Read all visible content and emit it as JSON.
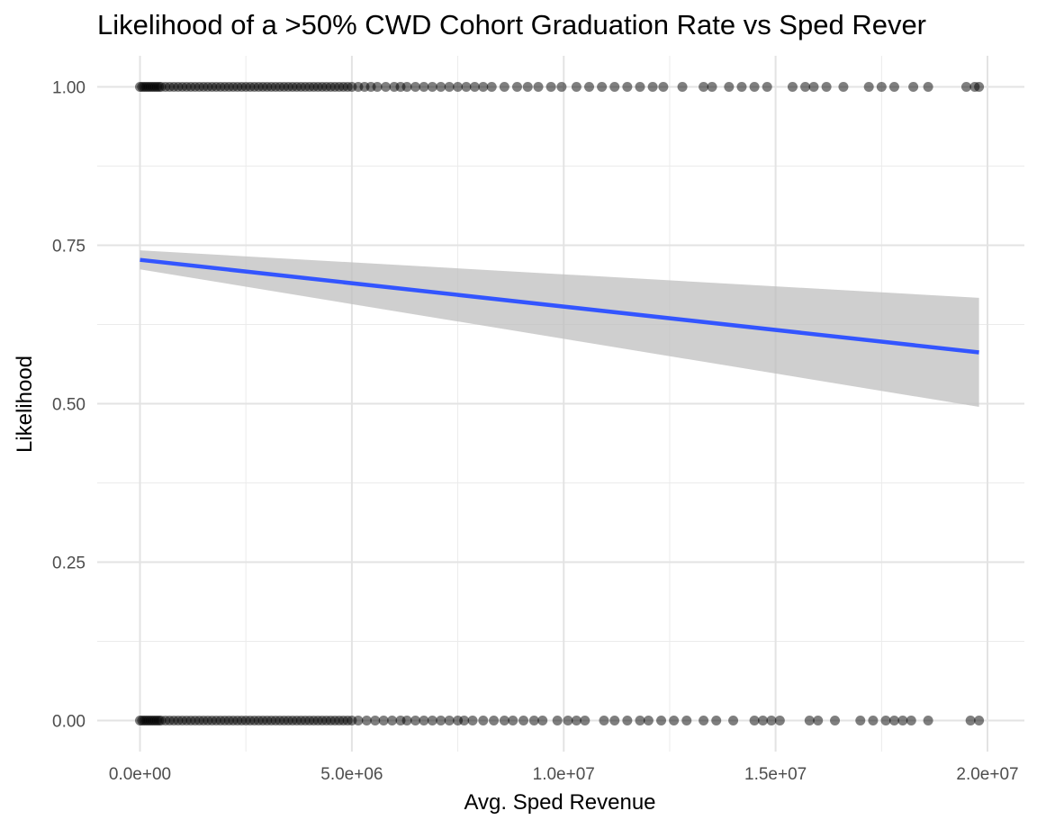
{
  "chart_data": {
    "type": "scatter",
    "title": "Likelihood of a >50% CWD Cohort Graduation Rate vs Sped Rever",
    "xlabel": "Avg. Sped Revenue",
    "ylabel": "Likelihood",
    "xlim": [
      0,
      20000000
    ],
    "ylim": [
      0,
      1
    ],
    "x_ticks": [
      0,
      5000000,
      10000000,
      15000000,
      20000000
    ],
    "x_tick_labels": [
      "0.0e+00",
      "5.0e+06",
      "1.0e+07",
      "1.5e+07",
      "2.0e+07"
    ],
    "y_ticks": [
      0,
      0.25,
      0.5,
      0.75,
      1
    ],
    "y_tick_labels": [
      "0.00",
      "0.25",
      "0.50",
      "0.75",
      "1.00"
    ],
    "grid": true,
    "point_color": "#000000",
    "fit_color": "#3355ff",
    "band_color": "#bfbfbf",
    "series": [
      {
        "type": "scatter",
        "y": 1,
        "x": [
          0,
          50000,
          100000,
          150000,
          200000,
          250000,
          300000,
          350000,
          400000,
          450000,
          500000,
          600000,
          700000,
          800000,
          900000,
          1000000,
          1100000,
          1200000,
          1300000,
          1400000,
          1500000,
          1600000,
          1700000,
          1800000,
          1900000,
          2000000,
          2100000,
          2200000,
          2300000,
          2400000,
          2500000,
          2600000,
          2700000,
          2800000,
          2900000,
          3000000,
          3100000,
          3200000,
          3300000,
          3400000,
          3500000,
          3600000,
          3700000,
          3800000,
          3900000,
          4000000,
          4100000,
          4200000,
          4300000,
          4400000,
          4500000,
          4600000,
          4700000,
          4800000,
          4900000,
          5000000,
          5150000,
          5300000,
          5450000,
          5600000,
          5800000,
          6000000,
          6150000,
          6300000,
          6500000,
          6700000,
          6900000,
          7100000,
          7300000,
          7500000,
          7700000,
          7900000,
          8100000,
          8300000,
          8600000,
          8900000,
          9150000,
          9400000,
          9700000,
          9950000,
          10300000,
          10600000,
          10900000,
          11200000,
          11500000,
          11800000,
          12100000,
          12350000,
          12800000,
          13300000,
          13500000,
          13900000,
          14200000,
          14500000,
          14800000,
          15400000,
          15700000,
          15900000,
          16200000,
          16600000,
          17200000,
          17500000,
          17800000,
          18250000,
          18600000,
          19500000,
          19700000,
          19800000
        ]
      },
      {
        "type": "scatter",
        "y": 0,
        "x": [
          0,
          50000,
          100000,
          150000,
          200000,
          250000,
          300000,
          350000,
          400000,
          450000,
          500000,
          600000,
          700000,
          800000,
          900000,
          1000000,
          1100000,
          1200000,
          1300000,
          1400000,
          1500000,
          1600000,
          1700000,
          1800000,
          1900000,
          2000000,
          2100000,
          2200000,
          2300000,
          2400000,
          2500000,
          2600000,
          2700000,
          2800000,
          2900000,
          3000000,
          3100000,
          3200000,
          3300000,
          3400000,
          3500000,
          3600000,
          3700000,
          3800000,
          3900000,
          4000000,
          4100000,
          4200000,
          4300000,
          4400000,
          4500000,
          4600000,
          4700000,
          4800000,
          4900000,
          5000000,
          5150000,
          5350000,
          5550000,
          5750000,
          5950000,
          6150000,
          6300000,
          6500000,
          6700000,
          6900000,
          7100000,
          7300000,
          7500000,
          7650000,
          7850000,
          8100000,
          8350000,
          8600000,
          8800000,
          9050000,
          9300000,
          9500000,
          9850000,
          10100000,
          10300000,
          10500000,
          10950000,
          11200000,
          11500000,
          11800000,
          12000000,
          12300000,
          12600000,
          12900000,
          13300000,
          13600000,
          14000000,
          14500000,
          14700000,
          14900000,
          15100000,
          15800000,
          16000000,
          16400000,
          17000000,
          17300000,
          17600000,
          17800000,
          18000000,
          18200000,
          18600000,
          19600000,
          19800000
        ]
      },
      {
        "type": "line",
        "name": "",
        "x": [
          0,
          19800000
        ],
        "y": [
          0.727,
          0.581
        ],
        "ci_lower": [
          0.712,
          0.495
        ],
        "ci_upper": [
          0.742,
          0.667
        ]
      }
    ]
  }
}
